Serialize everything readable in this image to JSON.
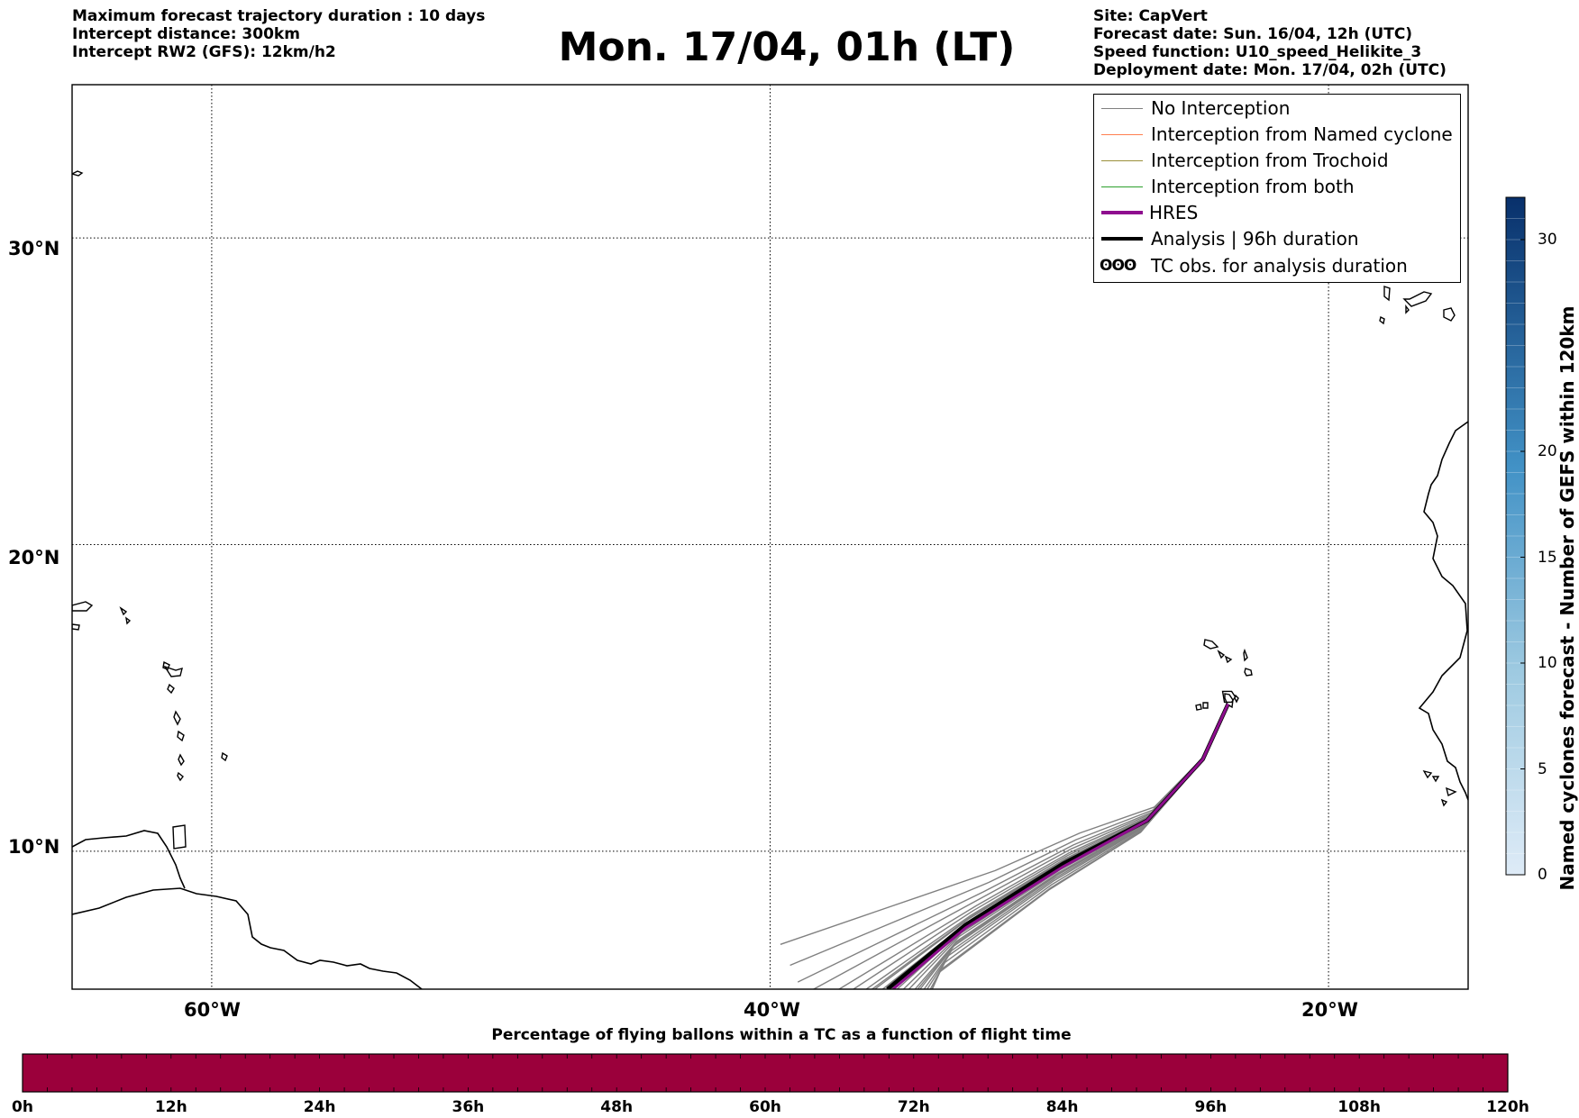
{
  "header": {
    "left_lines": [
      "Maximum forecast trajectory duration : 10 days",
      "Intercept distance: 300km",
      "Intercept RW2 (GFS):  12km/h2"
    ],
    "title": "Mon. 17/04, 01h (LT)",
    "right_lines": [
      "Site: CapVert",
      "Forecast date: Sun. 16/04, 12h (UTC)",
      "Speed function: U10_speed_Helikite_3",
      "Deployment date: Mon. 17/04, 02h (UTC)"
    ]
  },
  "map": {
    "lon_range": [
      -65,
      -15
    ],
    "lat_range": [
      5.5,
      35
    ],
    "lat_ticks": [
      {
        "value": 30,
        "label": "30°N"
      },
      {
        "value": 20,
        "label": "20°N"
      },
      {
        "value": 10,
        "label": "10°N"
      }
    ],
    "lon_ticks": [
      {
        "value": -60,
        "label": "60°W"
      },
      {
        "value": -40,
        "label": "40°W"
      },
      {
        "value": -20,
        "label": "20°W"
      }
    ],
    "grid": true,
    "launch_site": {
      "lon": -23.6,
      "lat": 14.8
    }
  },
  "legend": {
    "placement": "top-right",
    "items": [
      {
        "label": "No Interception",
        "color": "#808080",
        "style": "thin"
      },
      {
        "label": "Interception from Named cyclone",
        "color": "#ff7f50",
        "style": "thin"
      },
      {
        "label": "Interception from Trochoid",
        "color": "#9a8f3a",
        "style": "thin"
      },
      {
        "label": "Interception from both",
        "color": "#2ca02c",
        "style": "thin"
      },
      {
        "label": "HRES",
        "color": "#8e0e8e",
        "style": "thick"
      },
      {
        "label": "Analysis | 96h duration",
        "color": "#000000",
        "style": "thick"
      },
      {
        "label": "TC obs. for analysis duration",
        "symbol": "ʘʘʘ",
        "style": "symbol"
      }
    ]
  },
  "trajectories": {
    "hres": {
      "label": "HRES",
      "points": [
        [
          -23.6,
          14.8
        ],
        [
          -24.5,
          13
        ],
        [
          -26.5,
          11
        ],
        [
          -29.5,
          9.5
        ],
        [
          -33,
          7.5
        ],
        [
          -35.6,
          5.5
        ]
      ]
    },
    "analysis": {
      "label": "Analysis | 96h duration",
      "points": [
        [
          -23.6,
          14.8
        ],
        [
          -24.5,
          13
        ],
        [
          -26.5,
          11
        ],
        [
          -29.5,
          9.6
        ],
        [
          -33,
          7.6
        ],
        [
          -35.8,
          5.5
        ]
      ]
    }
  },
  "colorbar": {
    "label": "Named cyclones forecast - Number of GEFS within 120km",
    "range": [
      0,
      32
    ],
    "ticks": [
      0,
      5,
      10,
      15,
      20,
      30
    ],
    "colormap": "Blues"
  },
  "flight_bar": {
    "title": "Percentage of flying ballons within a TC as a function of flight time",
    "color": "#9b003b",
    "ticks": [
      "0h",
      "12h",
      "24h",
      "36h",
      "48h",
      "60h",
      "72h",
      "84h",
      "96h",
      "108h",
      "120h"
    ]
  }
}
